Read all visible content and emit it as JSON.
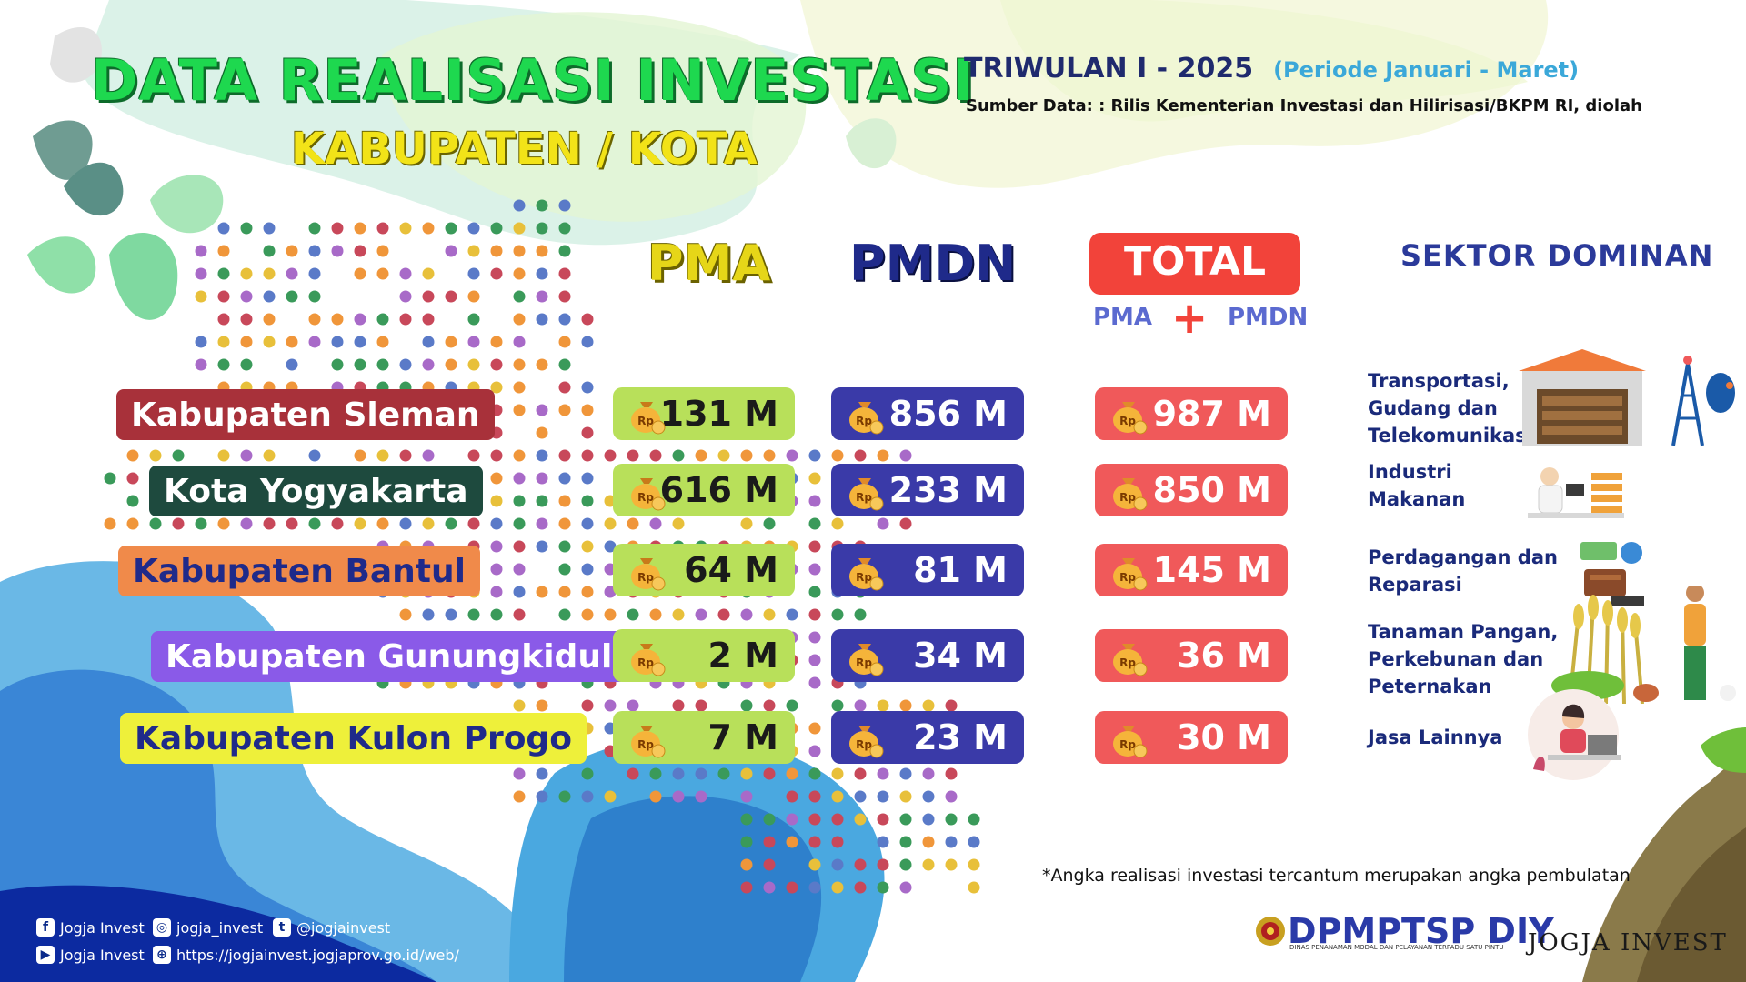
{
  "header": {
    "title": "DATA REALISASI INVESTASI",
    "subtitle": "KABUPATEN / KOTA",
    "period": "TRIWULAN I - 2025",
    "period_range": "(Periode Januari - Maret)",
    "source": "Sumber Data: : Rilis Kementerian Investasi dan Hilirisasi/BKPM RI, diolah"
  },
  "columns": {
    "pma": "PMA",
    "pmdn": "PMDN",
    "total": "TOTAL",
    "total_sub_a": "PMA",
    "total_sub_plus": "+",
    "total_sub_b": "PMDN",
    "sector": "SEKTOR DOMINAN"
  },
  "chart_data": {
    "type": "table",
    "unit": "M",
    "columns": [
      "PMA",
      "PMDN",
      "TOTAL",
      "SEKTOR DOMINAN"
    ],
    "rows": [
      {
        "region": "Kabupaten Sleman",
        "pma": "131 M",
        "pmdn": "856 M",
        "total": "987 M",
        "sector": "Transportasi,\nGudang dan\nTelekomunikasi",
        "label_color": "#a8313a",
        "text_color": "#ffffff"
      },
      {
        "region": "Kota Yogyakarta",
        "pma": "616 M",
        "pmdn": "233 M",
        "total": "850 M",
        "sector": "Industri\nMakanan",
        "label_color": "#1e4a3e",
        "text_color": "#ffffff"
      },
      {
        "region": "Kabupaten Bantul",
        "pma": "64 M",
        "pmdn": "81 M",
        "total": "145 M",
        "sector": "Perdagangan dan\nReparasi",
        "label_color": "#f08a4a",
        "text_color": "#1f2a8a"
      },
      {
        "region": "Kabupaten Gunungkidul",
        "pma": "2 M",
        "pmdn": "34 M",
        "total": "36 M",
        "sector": "Tanaman Pangan,\nPerkebunan dan\nPeternakan",
        "label_color": "#8a5ae8",
        "text_color": "#ffffff"
      },
      {
        "region": "Kabupaten Kulon Progo",
        "pma": "7 M",
        "pmdn": "23 M",
        "total": "30 M",
        "sector": "Jasa Lainnya",
        "label_color": "#eef03a",
        "text_color": "#1f2a8a"
      }
    ]
  },
  "footnote": "*Angka realisasi investasi tercantum merupakan angka pembulatan",
  "footer": {
    "facebook": "Jogja Invest",
    "instagram": "jogja_invest",
    "twitter": "@jogjainvest",
    "youtube": "Jogja Invest",
    "website": "https://jogjainvest.jogjaprov.go.id/web/",
    "logo_main": "DPMPTSP DIY",
    "logo_sub": "DINAS PENANAMAN MODAL DAN PELAYANAN TERPADU SATU PINTU",
    "logo_brand": "JOGJA INVEST"
  },
  "colors": {
    "title_green": "#1ed84f",
    "subtitle_yellow": "#f2e318",
    "pma_pill": "#b8e05a",
    "pmdn_pill": "#3a3aa8",
    "total_pill": "#f0595a",
    "total_header": "#f2433a",
    "navy": "#1f2a6e"
  }
}
